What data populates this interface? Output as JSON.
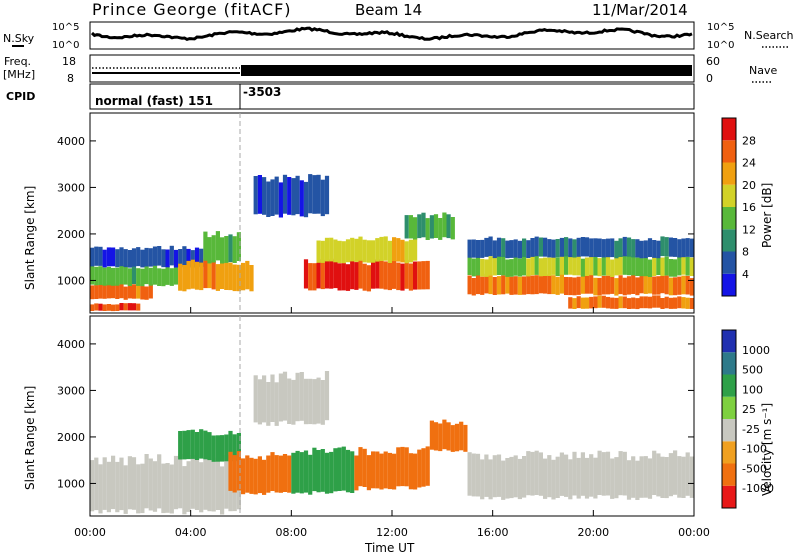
{
  "header": {
    "station": "Prince George (fitACF)",
    "beam": "Beam 14",
    "date": "11/Mar/2014"
  },
  "top_panels": {
    "noise_left_label": "N.Sky",
    "noise_right_label": "N.Search",
    "noise_left_ticks": [
      "10^5",
      "10^0"
    ],
    "noise_right_ticks": [
      "10^5",
      "10^0"
    ],
    "freq_label_1": "Freq.",
    "freq_label_2": "[MHz]",
    "freq_ticks": [
      "18",
      "8"
    ],
    "nave_label": "Nave",
    "nave_ticks": [
      "60",
      "0"
    ],
    "cpid_label": "CPID",
    "cpid_segments": [
      {
        "text": "normal (fast) 151",
        "start_hour": 0
      },
      {
        "text": "-3503",
        "start_hour": 6
      }
    ]
  },
  "power_colorbar": {
    "label": "Power [dB]",
    "ticks": [
      "28",
      "24",
      "20",
      "16",
      "12",
      "8",
      "4"
    ],
    "colors": [
      "#1414e6",
      "#2454a4",
      "#2e8e6c",
      "#58b83a",
      "#d2d228",
      "#f0a010",
      "#f06010",
      "#e01010"
    ]
  },
  "velocity_colorbar": {
    "label": "Velocity [m s⁻¹]",
    "ticks": [
      "1000",
      "500",
      "100",
      "25",
      "-25",
      "-100",
      "-500",
      "-1000"
    ],
    "colors": [
      "#2030b0",
      "#2e7a8a",
      "#2ea048",
      "#7ed040",
      "#c8c8c0",
      "#f0a020",
      "#f07010",
      "#e81818"
    ]
  },
  "time_axis": {
    "label": "Time UT",
    "ticks": [
      "00:00",
      "04:00",
      "08:00",
      "12:00",
      "16:00",
      "20:00",
      "00:00"
    ]
  },
  "chart_data": [
    {
      "type": "heatmap",
      "title": "Power",
      "ylabel": "Slant Range [km]",
      "xlabel": "",
      "x_ticks": [
        "00:00",
        "04:00",
        "08:00",
        "12:00",
        "16:00",
        "20:00",
        "00:00"
      ],
      "y_ticks": [
        1000,
        2000,
        3000,
        4000
      ],
      "ylim": [
        300,
        4600
      ],
      "xlim_hours": [
        0,
        24
      ],
      "colorbar_ticks": [
        4,
        8,
        12,
        16,
        20,
        24,
        28
      ],
      "regions": [
        {
          "t0": 0.0,
          "t1": 2.0,
          "r0": 350,
          "r1": 500,
          "value": 26
        },
        {
          "t0": 0.0,
          "t1": 2.5,
          "r0": 600,
          "r1": 900,
          "value": 24
        },
        {
          "t0": 0.0,
          "t1": 3.5,
          "r0": 900,
          "r1": 1300,
          "value": 14
        },
        {
          "t0": 0.0,
          "t1": 4.5,
          "r0": 1300,
          "r1": 1700,
          "value": 6
        },
        {
          "t0": 3.5,
          "t1": 6.5,
          "r0": 800,
          "r1": 1400,
          "value": 22
        },
        {
          "t0": 4.5,
          "t1": 6.0,
          "r0": 1400,
          "r1": 2000,
          "value": 14
        },
        {
          "t0": 8.5,
          "t1": 13.5,
          "r0": 800,
          "r1": 1400,
          "value": 26
        },
        {
          "t0": 9.0,
          "t1": 13.0,
          "r0": 1400,
          "r1": 1900,
          "value": 18
        },
        {
          "t0": 12.5,
          "t1": 14.5,
          "r0": 1900,
          "r1": 2400,
          "value": 12
        },
        {
          "t0": 15.0,
          "t1": 24.0,
          "r0": 700,
          "r1": 1100,
          "value": 24
        },
        {
          "t0": 15.0,
          "t1": 24.0,
          "r0": 1100,
          "r1": 1500,
          "value": 16
        },
        {
          "t0": 15.0,
          "t1": 24.0,
          "r0": 1500,
          "r1": 1900,
          "value": 8
        },
        {
          "t0": 19.0,
          "t1": 24.0,
          "r0": 400,
          "r1": 650,
          "value": 24
        },
        {
          "t0": 6.5,
          "t1": 9.5,
          "r0": 2400,
          "r1": 3200,
          "value": 6
        }
      ]
    },
    {
      "type": "heatmap",
      "title": "Velocity",
      "ylabel": "Slant Range [km]",
      "xlabel": "Time UT",
      "x_ticks": [
        "00:00",
        "04:00",
        "08:00",
        "12:00",
        "16:00",
        "20:00",
        "00:00"
      ],
      "y_ticks": [
        1000,
        2000,
        3000,
        4000
      ],
      "ylim": [
        300,
        4600
      ],
      "xlim_hours": [
        0,
        24
      ],
      "colorbar_ticks": [
        -1000,
        -500,
        -100,
        -25,
        25,
        100,
        500,
        1000
      ],
      "regions": [
        {
          "t0": 0.0,
          "t1": 6.0,
          "r0": 400,
          "r1": 1500,
          "value": 0
        },
        {
          "t0": 3.5,
          "t1": 6.0,
          "r0": 1500,
          "r1": 2100,
          "value": 150
        },
        {
          "t0": 5.5,
          "t1": 8.0,
          "r0": 800,
          "r1": 1600,
          "value": -120
        },
        {
          "t0": 8.0,
          "t1": 10.5,
          "r0": 800,
          "r1": 1700,
          "value": 200
        },
        {
          "t0": 10.5,
          "t1": 13.5,
          "r0": 900,
          "r1": 1700,
          "value": -120
        },
        {
          "t0": 13.5,
          "t1": 15.0,
          "r0": 1700,
          "r1": 2300,
          "value": -300
        },
        {
          "t0": 15.0,
          "t1": 24.0,
          "r0": 700,
          "r1": 1600,
          "value": 0
        },
        {
          "t0": 6.5,
          "t1": 9.5,
          "r0": 2300,
          "r1": 3300,
          "value": 0
        }
      ]
    }
  ]
}
